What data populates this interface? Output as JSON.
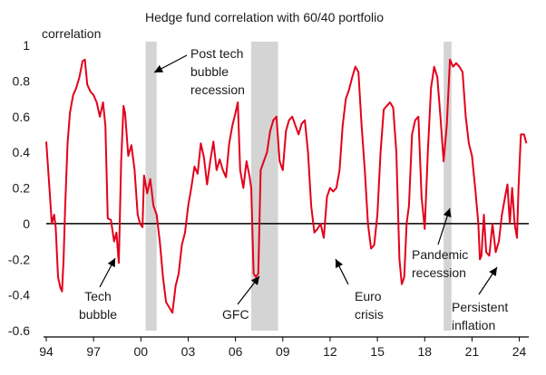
{
  "chart_data": {
    "type": "line",
    "title": "Hedge fund correlation with 60/40 portfolio",
    "ylabel": "correlation",
    "xlabel": "",
    "xlim": [
      1994,
      2024.6
    ],
    "ylim": [
      -0.6,
      1
    ],
    "yticks": [
      -0.6,
      -0.4,
      -0.2,
      0,
      0.2,
      0.4,
      0.6,
      0.8,
      1
    ],
    "ytick_labels": [
      "-0.6",
      "-0.4",
      "-0.2",
      "0",
      "0.2",
      "0.4",
      "0.6",
      "0.8",
      "1"
    ],
    "xticks": [
      1994,
      1997,
      2000,
      2003,
      2006,
      2009,
      2012,
      2015,
      2018,
      2021,
      2024
    ],
    "xtick_labels": [
      "94",
      "97",
      "00",
      "03",
      "06",
      "09",
      "12",
      "15",
      "18",
      "21",
      "24"
    ],
    "series_color": "#e3001b",
    "shade_color": "#d4d4d4",
    "recessions": [
      {
        "start": 2000.3,
        "end": 2001.0
      },
      {
        "start": 2007.0,
        "end": 2008.7
      },
      {
        "start": 2019.2,
        "end": 2019.7
      }
    ],
    "annotations": [
      {
        "id": "post-tech",
        "lines": [
          "Post tech",
          "bubble",
          "recession"
        ]
      },
      {
        "id": "tech-bubble",
        "lines": [
          "Tech",
          "bubble"
        ]
      },
      {
        "id": "gfc",
        "lines": [
          "GFC"
        ]
      },
      {
        "id": "euro-crisis",
        "lines": [
          "Euro",
          "crisis"
        ]
      },
      {
        "id": "pandemic",
        "lines": [
          "Pandemic",
          "recession"
        ]
      },
      {
        "id": "persistent-inflation",
        "lines": [
          "Persistent",
          "inflation"
        ]
      }
    ],
    "series": [
      {
        "values": [
          [
            1994.0,
            0.46
          ],
          [
            1994.2,
            0.2
          ],
          [
            1994.35,
            0.0
          ],
          [
            1994.5,
            0.05
          ],
          [
            1994.6,
            -0.02
          ],
          [
            1994.75,
            -0.3
          ],
          [
            1994.9,
            -0.36
          ],
          [
            1995.0,
            -0.38
          ],
          [
            1995.1,
            -0.2
          ],
          [
            1995.2,
            0.1
          ],
          [
            1995.35,
            0.45
          ],
          [
            1995.5,
            0.62
          ],
          [
            1995.7,
            0.72
          ],
          [
            1995.9,
            0.76
          ],
          [
            1996.1,
            0.82
          ],
          [
            1996.3,
            0.91
          ],
          [
            1996.45,
            0.92
          ],
          [
            1996.6,
            0.78
          ],
          [
            1996.8,
            0.74
          ],
          [
            1997.0,
            0.72
          ],
          [
            1997.2,
            0.68
          ],
          [
            1997.4,
            0.6
          ],
          [
            1997.6,
            0.68
          ],
          [
            1997.75,
            0.55
          ],
          [
            1997.9,
            0.03
          ],
          [
            1998.1,
            0.02
          ],
          [
            1998.3,
            -0.1
          ],
          [
            1998.45,
            -0.05
          ],
          [
            1998.6,
            -0.22
          ],
          [
            1998.75,
            0.35
          ],
          [
            1998.9,
            0.66
          ],
          [
            1999.0,
            0.62
          ],
          [
            1999.2,
            0.38
          ],
          [
            1999.4,
            0.44
          ],
          [
            1999.6,
            0.3
          ],
          [
            1999.8,
            0.05
          ],
          [
            1999.95,
            0.0
          ],
          [
            2000.1,
            -0.02
          ],
          [
            2000.2,
            0.27
          ],
          [
            2000.4,
            0.17
          ],
          [
            2000.6,
            0.25
          ],
          [
            2000.8,
            0.1
          ],
          [
            2001.0,
            0.05
          ],
          [
            2001.2,
            -0.1
          ],
          [
            2001.4,
            -0.3
          ],
          [
            2001.6,
            -0.44
          ],
          [
            2001.8,
            -0.47
          ],
          [
            2002.0,
            -0.5
          ],
          [
            2002.2,
            -0.35
          ],
          [
            2002.4,
            -0.28
          ],
          [
            2002.6,
            -0.12
          ],
          [
            2002.8,
            -0.05
          ],
          [
            2003.0,
            0.1
          ],
          [
            2003.2,
            0.2
          ],
          [
            2003.4,
            0.32
          ],
          [
            2003.6,
            0.28
          ],
          [
            2003.8,
            0.45
          ],
          [
            2004.0,
            0.37
          ],
          [
            2004.2,
            0.22
          ],
          [
            2004.4,
            0.35
          ],
          [
            2004.6,
            0.46
          ],
          [
            2004.8,
            0.3
          ],
          [
            2005.0,
            0.36
          ],
          [
            2005.2,
            0.3
          ],
          [
            2005.4,
            0.26
          ],
          [
            2005.6,
            0.45
          ],
          [
            2005.8,
            0.55
          ],
          [
            2006.0,
            0.62
          ],
          [
            2006.15,
            0.68
          ],
          [
            2006.3,
            0.3
          ],
          [
            2006.5,
            0.2
          ],
          [
            2006.7,
            0.35
          ],
          [
            2006.9,
            0.26
          ],
          [
            2007.0,
            0.2
          ],
          [
            2007.15,
            -0.28
          ],
          [
            2007.3,
            -0.3
          ],
          [
            2007.45,
            -0.28
          ],
          [
            2007.6,
            0.3
          ],
          [
            2007.8,
            0.35
          ],
          [
            2008.0,
            0.4
          ],
          [
            2008.2,
            0.52
          ],
          [
            2008.4,
            0.58
          ],
          [
            2008.6,
            0.6
          ],
          [
            2008.8,
            0.35
          ],
          [
            2009.0,
            0.3
          ],
          [
            2009.2,
            0.52
          ],
          [
            2009.4,
            0.58
          ],
          [
            2009.6,
            0.6
          ],
          [
            2009.8,
            0.55
          ],
          [
            2010.0,
            0.5
          ],
          [
            2010.2,
            0.56
          ],
          [
            2010.4,
            0.58
          ],
          [
            2010.6,
            0.4
          ],
          [
            2010.8,
            0.1
          ],
          [
            2011.0,
            -0.05
          ],
          [
            2011.2,
            -0.03
          ],
          [
            2011.4,
            0.0
          ],
          [
            2011.6,
            -0.08
          ],
          [
            2011.8,
            0.15
          ],
          [
            2012.0,
            0.2
          ],
          [
            2012.2,
            0.18
          ],
          [
            2012.4,
            0.2
          ],
          [
            2012.6,
            0.3
          ],
          [
            2012.8,
            0.55
          ],
          [
            2013.0,
            0.7
          ],
          [
            2013.2,
            0.75
          ],
          [
            2013.4,
            0.82
          ],
          [
            2013.6,
            0.88
          ],
          [
            2013.8,
            0.85
          ],
          [
            2014.0,
            0.55
          ],
          [
            2014.2,
            0.3
          ],
          [
            2014.4,
            0.0
          ],
          [
            2014.6,
            -0.14
          ],
          [
            2014.8,
            -0.12
          ],
          [
            2015.0,
            0.05
          ],
          [
            2015.2,
            0.4
          ],
          [
            2015.4,
            0.64
          ],
          [
            2015.6,
            0.66
          ],
          [
            2015.8,
            0.68
          ],
          [
            2016.0,
            0.65
          ],
          [
            2016.2,
            0.4
          ],
          [
            2016.4,
            -0.2
          ],
          [
            2016.55,
            -0.34
          ],
          [
            2016.7,
            -0.3
          ],
          [
            2016.85,
            0.0
          ],
          [
            2017.0,
            0.1
          ],
          [
            2017.2,
            0.5
          ],
          [
            2017.4,
            0.58
          ],
          [
            2017.6,
            0.6
          ],
          [
            2017.8,
            0.15
          ],
          [
            2018.0,
            -0.03
          ],
          [
            2018.2,
            0.4
          ],
          [
            2018.4,
            0.76
          ],
          [
            2018.6,
            0.88
          ],
          [
            2018.8,
            0.82
          ],
          [
            2019.0,
            0.6
          ],
          [
            2019.2,
            0.35
          ],
          [
            2019.4,
            0.55
          ],
          [
            2019.6,
            0.92
          ],
          [
            2019.8,
            0.88
          ],
          [
            2020.0,
            0.9
          ],
          [
            2020.2,
            0.88
          ],
          [
            2020.4,
            0.85
          ],
          [
            2020.6,
            0.6
          ],
          [
            2020.8,
            0.45
          ],
          [
            2021.0,
            0.38
          ],
          [
            2021.2,
            0.2
          ],
          [
            2021.4,
            0.0
          ],
          [
            2021.5,
            -0.2
          ],
          [
            2021.6,
            -0.18
          ],
          [
            2021.75,
            0.05
          ],
          [
            2021.9,
            -0.16
          ],
          [
            2022.1,
            -0.18
          ],
          [
            2022.3,
            0.0
          ],
          [
            2022.5,
            -0.16
          ],
          [
            2022.7,
            -0.1
          ],
          [
            2022.9,
            0.05
          ],
          [
            2023.1,
            0.15
          ],
          [
            2023.25,
            0.22
          ],
          [
            2023.4,
            0.0
          ],
          [
            2023.55,
            0.2
          ],
          [
            2023.7,
            0.0
          ],
          [
            2023.85,
            -0.08
          ],
          [
            2023.95,
            0.2
          ],
          [
            2024.1,
            0.5
          ],
          [
            2024.3,
            0.5
          ],
          [
            2024.45,
            0.45
          ]
        ]
      }
    ]
  }
}
